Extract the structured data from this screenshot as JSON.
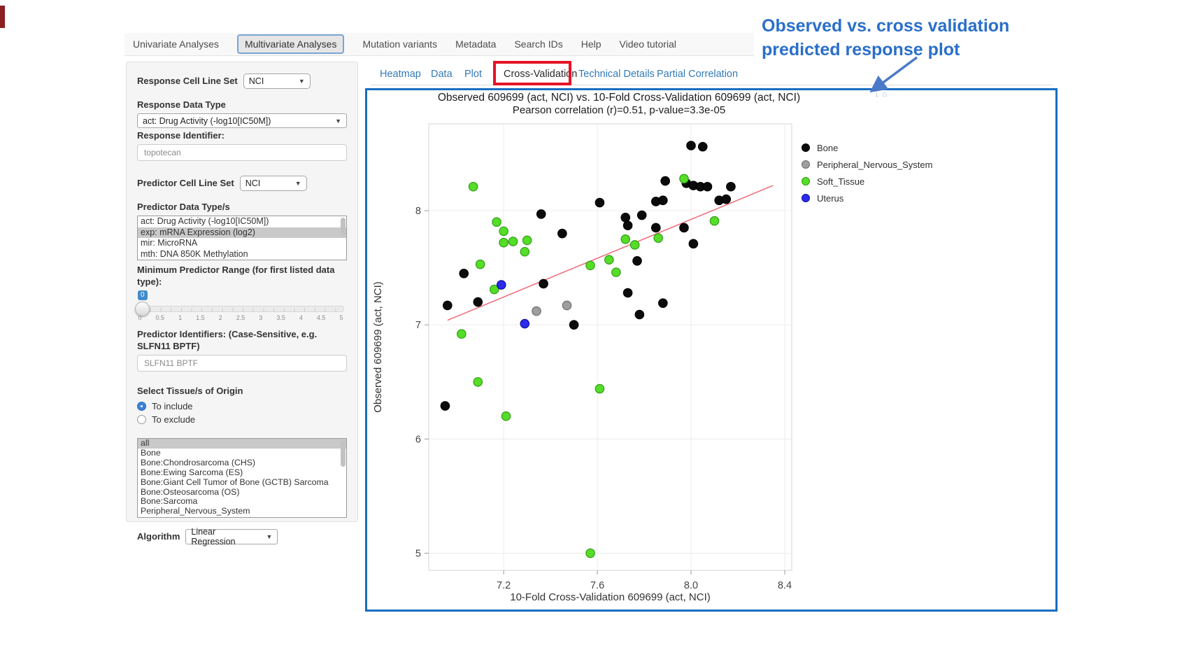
{
  "navbar": {
    "tabs": [
      {
        "label": "Univariate Analyses",
        "active": false
      },
      {
        "label": "Multivariate Analyses",
        "active": true
      },
      {
        "label": "Mutation variants",
        "active": false
      },
      {
        "label": "Metadata",
        "active": false
      },
      {
        "label": "Search IDs",
        "active": false
      },
      {
        "label": "Help",
        "active": false
      },
      {
        "label": "Video tutorial",
        "active": false
      }
    ]
  },
  "sidebar": {
    "response_cell_line_set": {
      "label": "Response Cell Line Set",
      "value": "NCI"
    },
    "response_data_type": {
      "label": "Response Data Type",
      "value": "act: Drug Activity (-log10[IC50M])"
    },
    "response_identifier": {
      "label": "Response Identifier:",
      "value": "topotecan"
    },
    "predictor_cell_line_set": {
      "label": "Predictor Cell Line Set",
      "value": "NCI"
    },
    "predictor_data_types": {
      "label": "Predictor Data Type/s",
      "options": [
        {
          "label": "act: Drug Activity (-log10[IC50M])",
          "selected": false
        },
        {
          "label": "exp: mRNA Expression (log2)",
          "selected": true
        },
        {
          "label": "mir: MicroRNA",
          "selected": false
        },
        {
          "label": "mth: DNA 850K Methylation",
          "selected": false
        }
      ]
    },
    "min_predictor_range": {
      "label": "Minimum Predictor Range (for first listed data type):",
      "value": "0",
      "tick_labels": [
        "0",
        "0.5",
        "1",
        "1.5",
        "2",
        "2.5",
        "3",
        "3.5",
        "4",
        "4.5",
        "5"
      ]
    },
    "predictor_identifiers": {
      "label": "Predictor Identifiers: (Case-Sensitive, e.g. SLFN11 BPTF)",
      "value": "SLFN11 BPTF"
    },
    "tissue_origin": {
      "label": "Select Tissue/s of Origin",
      "radios": [
        {
          "label": "To include",
          "selected": true
        },
        {
          "label": "To exclude",
          "selected": false
        }
      ],
      "options": [
        {
          "label": "all",
          "selected": true
        },
        {
          "label": "Bone",
          "selected": false
        },
        {
          "label": "Bone:Chondrosarcoma (CHS)",
          "selected": false
        },
        {
          "label": "Bone:Ewing Sarcoma (ES)",
          "selected": false
        },
        {
          "label": "Bone:Giant Cell Tumor of Bone (GCTB) Sarcoma",
          "selected": false
        },
        {
          "label": "Bone:Osteosarcoma (OS)",
          "selected": false
        },
        {
          "label": "Bone:Sarcoma",
          "selected": false
        },
        {
          "label": "Peripheral_Nervous_System",
          "selected": false
        }
      ]
    },
    "algorithm": {
      "label": "Algorithm",
      "value": "Linear Regression"
    }
  },
  "main_tabs": [
    {
      "label": "Heatmap",
      "active": false
    },
    {
      "label": "Data",
      "active": false
    },
    {
      "label": "Plot",
      "active": false
    },
    {
      "label": "Cross-Validation",
      "active": true
    },
    {
      "label": "Technical Details",
      "active": false
    },
    {
      "label": "Partial Correlation",
      "active": false
    }
  ],
  "annotation": {
    "line1": "Observed vs. cross validation",
    "line2": "predicted response plot",
    "text_color": "#2a6fc9",
    "arrow_color": "#4b79c9",
    "highlight_box_color": "#e51425",
    "plot_box_color": "#1a6dc0"
  },
  "modebar_icons": [
    "download-icon",
    "home-icon",
    "zoom-icon"
  ],
  "chart_data": {
    "type": "scatter",
    "title": "Observed 609699 (act, NCI) vs. 10-Fold Cross-Validation 609699 (act, NCI)",
    "subtitle": "Pearson correlation (r)=0.51, p-value=3.3e-05",
    "xlabel": "10-Fold Cross-Validation 609699 (act, NCI)",
    "ylabel": "Observed 609699 (act, NCI)",
    "pearson_r": 0.51,
    "p_value": "3.3e-05",
    "xlim": [
      6.88,
      8.43
    ],
    "ylim": [
      4.85,
      8.76
    ],
    "xticks": [
      7.2,
      7.6,
      8.0,
      8.4
    ],
    "xtick_labels": [
      "7.2",
      "7.6",
      "8.0",
      "8.4"
    ],
    "yticks": [
      5,
      6,
      7,
      8
    ],
    "ytick_labels": [
      "5",
      "6",
      "7",
      "8"
    ],
    "grid": true,
    "legend_position": "right",
    "regression_line": {
      "x": [
        6.96,
        8.35
      ],
      "y": [
        7.04,
        8.22
      ],
      "color": "#ef6a77"
    },
    "series": [
      {
        "name": "Bone",
        "color": "#0b0b0b",
        "stroke": "#000000",
        "points": [
          [
            8.0,
            8.57
          ],
          [
            8.05,
            8.56
          ],
          [
            7.89,
            8.26
          ],
          [
            7.98,
            8.24
          ],
          [
            8.01,
            8.22
          ],
          [
            8.04,
            8.21
          ],
          [
            8.07,
            8.21
          ],
          [
            8.17,
            8.21
          ],
          [
            7.61,
            8.07
          ],
          [
            7.85,
            8.08
          ],
          [
            7.88,
            8.09
          ],
          [
            8.12,
            8.09
          ],
          [
            8.15,
            8.1
          ],
          [
            7.36,
            7.97
          ],
          [
            7.72,
            7.94
          ],
          [
            7.79,
            7.96
          ],
          [
            7.73,
            7.87
          ],
          [
            7.85,
            7.85
          ],
          [
            7.97,
            7.85
          ],
          [
            7.45,
            7.8
          ],
          [
            8.01,
            7.71
          ],
          [
            7.77,
            7.56
          ],
          [
            7.03,
            7.45
          ],
          [
            7.37,
            7.36
          ],
          [
            7.73,
            7.28
          ],
          [
            7.09,
            7.2
          ],
          [
            6.96,
            7.17
          ],
          [
            7.88,
            7.19
          ],
          [
            7.78,
            7.09
          ],
          [
            7.5,
            7.0
          ],
          [
            6.95,
            6.29
          ]
        ]
      },
      {
        "name": "Peripheral_Nervous_System",
        "color": "#9e9e9e",
        "stroke": "#6e6e6e",
        "points": [
          [
            7.34,
            7.12
          ],
          [
            7.47,
            7.17
          ]
        ]
      },
      {
        "name": "Soft_Tissue",
        "color": "#55dd28",
        "stroke": "#2f9e14",
        "points": [
          [
            7.07,
            8.21
          ],
          [
            7.97,
            8.28
          ],
          [
            7.17,
            7.9
          ],
          [
            7.2,
            7.82
          ],
          [
            7.2,
            7.72
          ],
          [
            7.24,
            7.73
          ],
          [
            7.3,
            7.74
          ],
          [
            7.29,
            7.64
          ],
          [
            7.1,
            7.53
          ],
          [
            7.16,
            7.31
          ],
          [
            7.57,
            7.52
          ],
          [
            7.65,
            7.57
          ],
          [
            7.72,
            7.75
          ],
          [
            7.76,
            7.7
          ],
          [
            7.68,
            7.46
          ],
          [
            7.86,
            7.76
          ],
          [
            8.1,
            7.91
          ],
          [
            7.02,
            6.92
          ],
          [
            7.09,
            6.5
          ],
          [
            7.61,
            6.44
          ],
          [
            7.21,
            6.2
          ],
          [
            7.57,
            5.0
          ]
        ]
      },
      {
        "name": "Uterus",
        "color": "#2b2bec",
        "stroke": "#11119f",
        "points": [
          [
            7.19,
            7.35
          ],
          [
            7.29,
            7.01
          ]
        ]
      }
    ]
  }
}
